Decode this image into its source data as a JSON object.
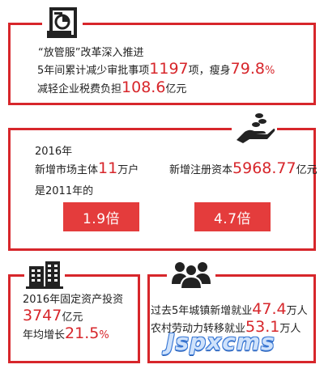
{
  "panel1": {
    "icon": "document-pie-chart-icon",
    "line1": "“放管服”改革深入推进",
    "line2_prefix": "5年间累计减少审批事项",
    "line2_value1": "1197",
    "line2_mid": "项，瘦身",
    "line2_value2": "79.8",
    "line2_suffix": "%",
    "line3_prefix": "减轻企业税费负担",
    "line3_value": "108.6",
    "line3_suffix": "亿元"
  },
  "panel2": {
    "icon": "hand-holding-coins-icon",
    "year": "2016年",
    "left_prefix": "新增市场主体",
    "left_value": "11",
    "left_suffix": "万户",
    "right_prefix": "新增注册资本",
    "right_value": "5968.77",
    "right_suffix": "亿元",
    "compare_label": "是2011年的",
    "box_left": "1.9倍",
    "box_right": "4.7倍"
  },
  "panel3": {
    "icon": "office-buildings-icon",
    "line1": "2016年固定资产投资",
    "value": "3747",
    "unit": "亿元",
    "growth_prefix": "年均增长",
    "growth_value": "21.5",
    "growth_suffix": "%"
  },
  "panel4": {
    "icon": "group-of-people-icon",
    "line1_prefix": "过去5年城镇新增就业",
    "line1_value": "47.4",
    "line1_suffix": "万人",
    "line2_prefix": "农村劳动力转移就业",
    "line2_value": "53.1",
    "line2_suffix": "万人"
  },
  "watermark": "Jspxcms",
  "colors": {
    "accent": "#d7262b",
    "box": "#e43c3c",
    "watermark": "#3c7ad6"
  }
}
